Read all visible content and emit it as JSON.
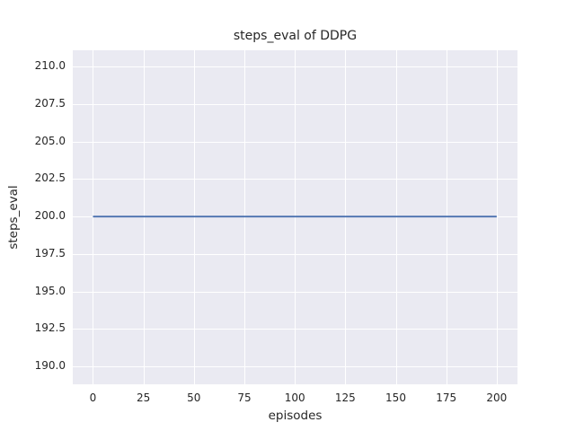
{
  "chart_data": {
    "type": "line",
    "title": "steps_eval of DDPG",
    "xlabel": "episodes",
    "ylabel": "steps_eval",
    "x_tick_values": [
      0,
      25,
      50,
      75,
      100,
      125,
      150,
      175,
      200
    ],
    "x_tick_labels": [
      "0",
      "25",
      "50",
      "75",
      "100",
      "125",
      "150",
      "175",
      "200"
    ],
    "y_tick_values": [
      190.0,
      192.5,
      195.0,
      197.5,
      200.0,
      202.5,
      205.0,
      207.5,
      210.0
    ],
    "y_tick_labels": [
      "190.0",
      "192.5",
      "195.0",
      "197.5",
      "200.0",
      "202.5",
      "205.0",
      "207.5",
      "210.0"
    ],
    "xlim": [
      -10,
      210.3
    ],
    "ylim": [
      188.8,
      211.1
    ],
    "grid": true,
    "legend": false,
    "style": "seaborn-darkgrid",
    "plot_background_color": "#eaeaf2",
    "grid_color": "#ffffff",
    "text_color": "#262626",
    "series": [
      {
        "name": "DDPG",
        "color": "#4c72b0",
        "line_width": 1.8,
        "x": [
          0,
          200
        ],
        "y": [
          200,
          200
        ]
      }
    ]
  }
}
